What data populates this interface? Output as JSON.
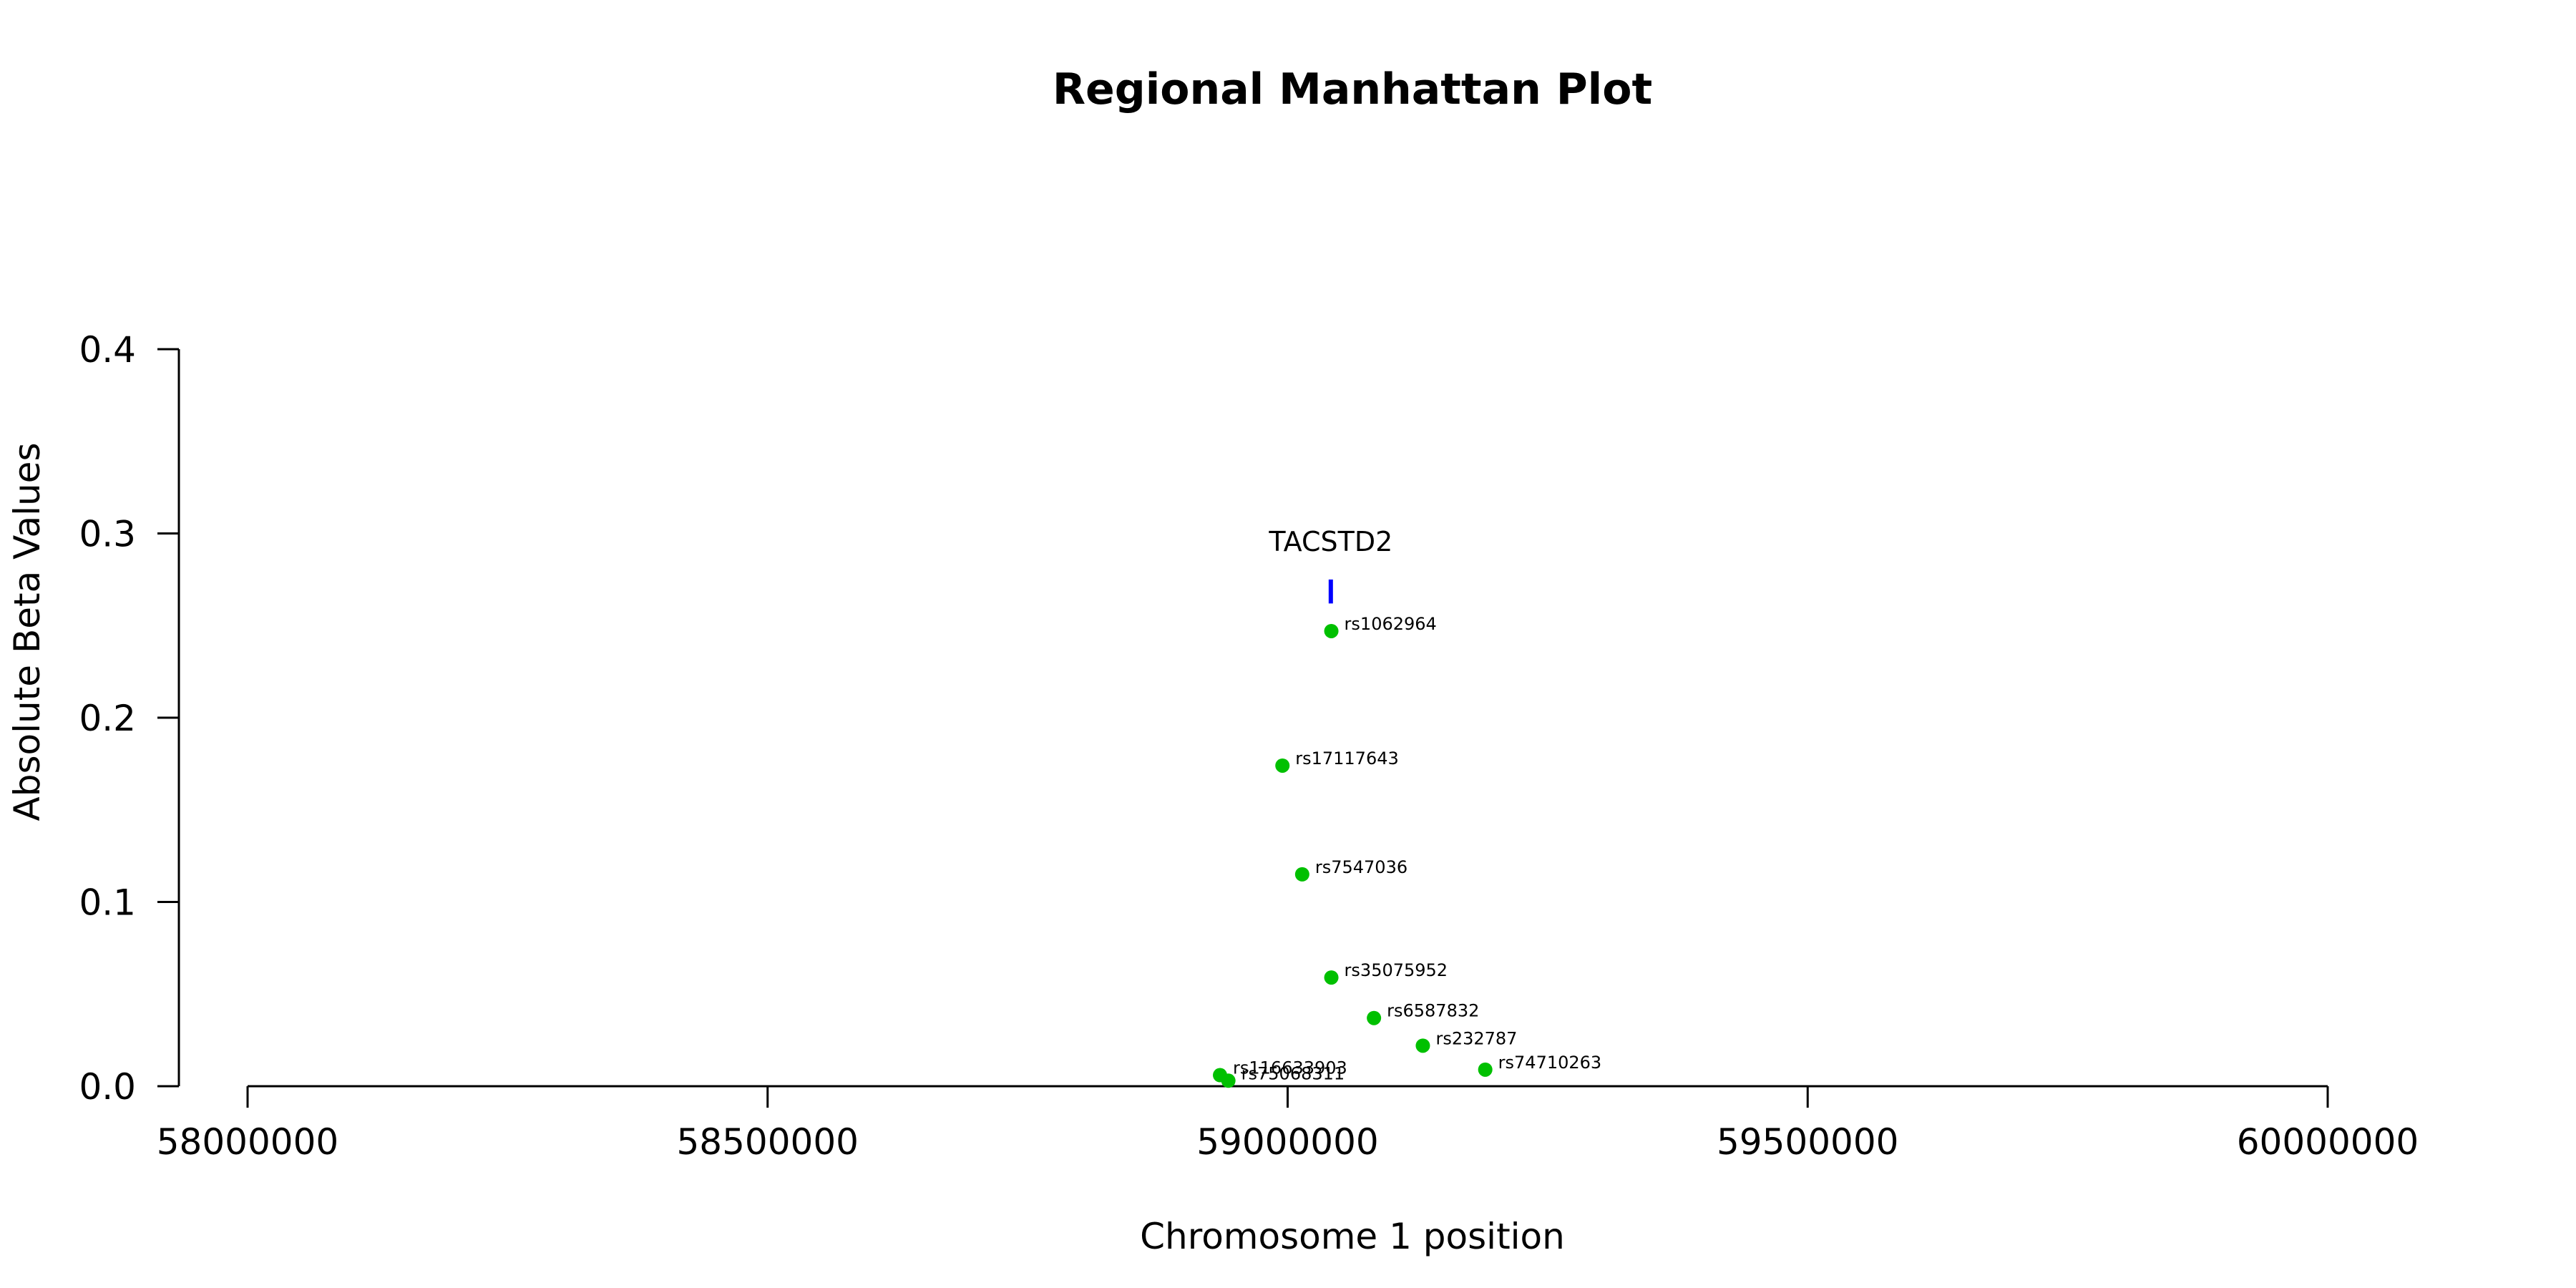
{
  "chart_data": {
    "type": "scatter",
    "title": "Regional Manhattan Plot",
    "xlabel": "Chromosome 1 position",
    "ylabel": "Absolute Beta Values",
    "xlim": [
      58000000,
      60000000
    ],
    "ylim": [
      0,
      0.4
    ],
    "x_ticks": [
      58000000,
      58500000,
      59000000,
      59500000,
      60000000
    ],
    "y_ticks": [
      0.0,
      0.1,
      0.2,
      0.3,
      0.4
    ],
    "x_tick_labels": [
      "58000000",
      "58500000",
      "59000000",
      "59500000",
      "60000000"
    ],
    "y_tick_labels": [
      "0.0",
      "0.1",
      "0.2",
      "0.3",
      "0.4"
    ],
    "grid": false,
    "point_color": "#00c000",
    "gene_color": "#0000ff",
    "points": [
      {
        "label": "rs1062964",
        "x": 59042000,
        "y": 0.247
      },
      {
        "label": "rs17117643",
        "x": 58995000,
        "y": 0.174
      },
      {
        "label": "rs7547036",
        "x": 59014000,
        "y": 0.115
      },
      {
        "label": "rs35075952",
        "x": 59042000,
        "y": 0.059
      },
      {
        "label": "rs6587832",
        "x": 59083000,
        "y": 0.037
      },
      {
        "label": "rs232787",
        "x": 59130000,
        "y": 0.022
      },
      {
        "label": "rs74710263",
        "x": 59190000,
        "y": 0.009
      },
      {
        "label": "rs116633903",
        "x": 58935000,
        "y": 0.006
      },
      {
        "label": "rs75068311",
        "x": 58943000,
        "y": 0.003
      }
    ],
    "genes": [
      {
        "name": "TACSTD2",
        "start": 59040000,
        "end": 59043000,
        "y_low": 0.262,
        "y_high": 0.275
      }
    ]
  }
}
